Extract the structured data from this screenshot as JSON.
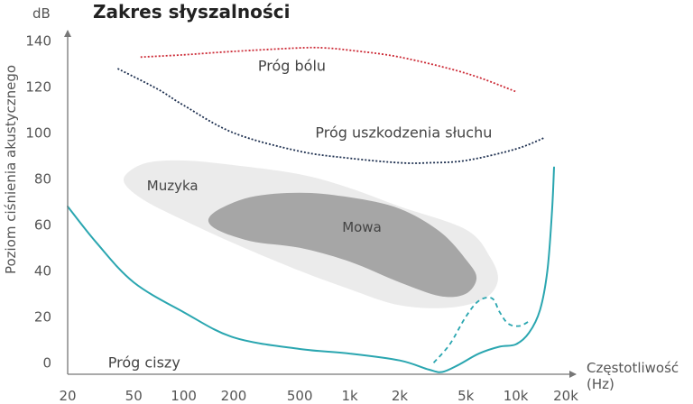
{
  "chart_data": {
    "type": "line",
    "title": "Zakres słyszalności",
    "xlabel": "Częstotliwość (Hz)",
    "xlabel_lines": [
      "Częstotliwość",
      "(Hz)"
    ],
    "ylabel": "Poziom ciśnienia akustycznego",
    "yunit": "dB",
    "xscale": "log",
    "xlim": [
      20,
      20000
    ],
    "ylim": [
      -5,
      150
    ],
    "x_ticks": [
      {
        "value": 20,
        "label": "20"
      },
      {
        "value": 50,
        "label": "50"
      },
      {
        "value": 100,
        "label": "100"
      },
      {
        "value": 200,
        "label": "200"
      },
      {
        "value": 500,
        "label": "500"
      },
      {
        "value": 1000,
        "label": "1k"
      },
      {
        "value": 2000,
        "label": "2k"
      },
      {
        "value": 5000,
        "label": "5k"
      },
      {
        "value": 10000,
        "label": "10k"
      },
      {
        "value": 20000,
        "label": "20k"
      }
    ],
    "y_ticks": [
      0,
      20,
      40,
      60,
      80,
      100,
      120,
      140
    ],
    "grid": false,
    "regions": [
      {
        "name": "Muzyka",
        "color": "#ebebeb",
        "label_at": {
          "x": 60,
          "y": 75
        },
        "points": [
          [
            45,
            82
          ],
          [
            60,
            87
          ],
          [
            100,
            88
          ],
          [
            200,
            86
          ],
          [
            500,
            82
          ],
          [
            1000,
            76
          ],
          [
            2000,
            68
          ],
          [
            5000,
            58
          ],
          [
            7000,
            46
          ],
          [
            7800,
            36
          ],
          [
            6500,
            28
          ],
          [
            4000,
            24
          ],
          [
            2000,
            25
          ],
          [
            1000,
            32
          ],
          [
            500,
            40
          ],
          [
            200,
            52
          ],
          [
            100,
            62
          ],
          [
            60,
            70
          ],
          [
            45,
            77
          ]
        ]
      },
      {
        "name": "Mowa",
        "color": "#a6a6a6",
        "label_at": {
          "x": 900,
          "y": 57
        },
        "points": [
          [
            150,
            65
          ],
          [
            250,
            72
          ],
          [
            500,
            74
          ],
          [
            1000,
            72
          ],
          [
            2000,
            67
          ],
          [
            3500,
            57
          ],
          [
            5000,
            45
          ],
          [
            5800,
            37
          ],
          [
            5000,
            30
          ],
          [
            3500,
            29
          ],
          [
            2000,
            35
          ],
          [
            1000,
            44
          ],
          [
            500,
            50
          ],
          [
            250,
            53
          ],
          [
            150,
            59
          ]
        ]
      }
    ],
    "series": [
      {
        "name": "Próg bólu",
        "color": "#cc2a36",
        "style": "dotted",
        "label_at": {
          "x": 280,
          "y": 127
        },
        "x": [
          55,
          100,
          200,
          500,
          700,
          1000,
          2000,
          5000,
          10000
        ],
        "y": [
          133,
          134,
          135.5,
          137,
          137,
          136,
          133,
          126,
          118
        ]
      },
      {
        "name": "Próg uszkodzenia słuchu",
        "color": "#1e3050",
        "style": "dotted",
        "label_at": {
          "x": 620,
          "y": 98
        },
        "x": [
          40,
          70,
          100,
          200,
          500,
          1000,
          2000,
          3000,
          5000,
          10000,
          15000
        ],
        "y": [
          128,
          119,
          112,
          100,
          92,
          89,
          87,
          87,
          88,
          93,
          98
        ]
      },
      {
        "name": "Próg ciszy",
        "color": "#2aa6b0",
        "style": "solid",
        "label_at": {
          "x": 35,
          "y": -2
        },
        "x": [
          20,
          30,
          50,
          100,
          200,
          500,
          1000,
          2000,
          3000,
          3600,
          4500,
          6000,
          8000,
          10000,
          12000,
          14000,
          15500,
          16500,
          17000
        ],
        "y": [
          68,
          52,
          35,
          22,
          11,
          6,
          4,
          1,
          -3,
          -4,
          -1,
          4,
          7,
          8,
          13,
          23,
          40,
          65,
          85
        ]
      },
      {
        "name": "",
        "color": "#2aa6b0",
        "style": "dashed",
        "x": [
          3200,
          4000,
          5000,
          6000,
          7200,
          8000,
          9000,
          10500,
          12000
        ],
        "y": [
          0,
          8,
          20,
          27,
          28,
          22,
          17,
          16,
          18
        ]
      }
    ]
  }
}
